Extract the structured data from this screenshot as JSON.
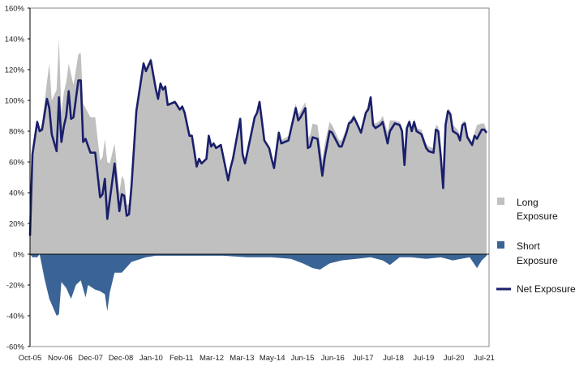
{
  "chart_data": {
    "type": "area",
    "title": "",
    "xlabel": "",
    "ylabel": "",
    "ylim": [
      -60,
      160
    ],
    "y_ticks": [
      "160%",
      "140%",
      "120%",
      "100%",
      "80%",
      "60%",
      "40%",
      "20%",
      "0%",
      "-20%",
      "-40%",
      "-60%"
    ],
    "y_tick_values": [
      160,
      140,
      120,
      100,
      80,
      60,
      40,
      20,
      0,
      -20,
      -40,
      -60
    ],
    "x_tick_labels": [
      "Oct-05",
      "Nov-06",
      "Dec-07",
      "Dec-08",
      "Jan-10",
      "Feb-11",
      "Mar-12",
      "Mar-13",
      "May-14",
      "Jun-15",
      "Jun-16",
      "Jul-17",
      "Jul-18",
      "Jul-19",
      "Jul-20",
      "Jul-21"
    ],
    "x_unit": "months since Oct-05",
    "xlim": [
      0,
      189
    ],
    "legend_position": "right",
    "series": [
      {
        "name": "Long Exposure",
        "kind": "area",
        "color": "#c0c0c0",
        "points": [
          [
            0,
            12
          ],
          [
            1,
            67
          ],
          [
            3,
            88
          ],
          [
            4,
            80
          ],
          [
            5,
            85
          ],
          [
            7,
            112
          ],
          [
            8,
            124
          ],
          [
            9,
            100
          ],
          [
            11,
            107
          ],
          [
            12,
            140
          ],
          [
            13,
            92
          ],
          [
            14,
            105
          ],
          [
            15,
            112
          ],
          [
            16,
            124
          ],
          [
            17,
            117
          ],
          [
            18,
            110
          ],
          [
            20,
            130
          ],
          [
            21,
            131
          ],
          [
            22,
            98
          ],
          [
            23,
            95
          ],
          [
            25,
            89
          ],
          [
            27,
            89
          ],
          [
            29,
            61
          ],
          [
            30,
            63
          ],
          [
            31,
            75
          ],
          [
            32,
            60
          ],
          [
            33,
            59
          ],
          [
            35,
            72
          ],
          [
            37,
            40
          ],
          [
            38,
            51
          ],
          [
            39,
            48
          ],
          [
            40,
            32
          ],
          [
            41,
            33
          ],
          [
            42,
            49
          ],
          [
            44,
            95
          ],
          [
            47,
            126
          ],
          [
            48,
            121
          ],
          [
            50,
            128
          ],
          [
            52,
            109
          ],
          [
            53,
            102
          ],
          [
            54,
            112
          ],
          [
            55,
            108
          ],
          [
            56,
            110
          ],
          [
            57,
            98
          ],
          [
            60,
            100
          ],
          [
            62,
            95
          ],
          [
            63,
            97
          ],
          [
            64,
            93
          ],
          [
            66,
            78
          ],
          [
            67,
            78
          ],
          [
            69,
            58
          ],
          [
            70,
            63
          ],
          [
            71,
            60
          ],
          [
            73,
            63
          ],
          [
            74,
            78
          ],
          [
            75,
            71
          ],
          [
            76,
            73
          ],
          [
            77,
            70
          ],
          [
            79,
            72
          ],
          [
            82,
            49
          ],
          [
            83,
            57
          ],
          [
            84,
            63
          ],
          [
            87,
            89
          ],
          [
            88,
            66
          ],
          [
            89,
            60
          ],
          [
            91,
            75
          ],
          [
            93,
            90
          ],
          [
            94,
            93
          ],
          [
            95,
            100
          ],
          [
            97,
            75
          ],
          [
            99,
            70
          ],
          [
            100,
            63
          ],
          [
            101,
            58
          ],
          [
            103,
            81
          ],
          [
            104,
            74
          ],
          [
            107,
            77
          ],
          [
            110,
            98
          ],
          [
            111,
            91
          ],
          [
            112,
            93
          ],
          [
            114,
            99
          ],
          [
            115,
            75
          ],
          [
            116,
            78
          ],
          [
            117,
            85
          ],
          [
            119,
            84
          ],
          [
            121,
            61
          ],
          [
            122,
            72
          ],
          [
            124,
            86
          ],
          [
            125,
            84
          ],
          [
            128,
            74
          ],
          [
            129,
            74
          ],
          [
            131,
            82
          ],
          [
            132,
            87
          ],
          [
            133,
            88
          ],
          [
            134,
            91
          ],
          [
            135,
            88
          ],
          [
            137,
            81
          ],
          [
            139,
            94
          ],
          [
            140,
            96
          ],
          [
            141,
            104
          ],
          [
            142,
            86
          ],
          [
            143,
            85
          ],
          [
            145,
            87
          ],
          [
            146,
            90
          ],
          [
            148,
            79
          ],
          [
            149,
            87
          ],
          [
            151,
            87
          ],
          [
            153,
            86
          ],
          [
            154,
            82
          ],
          [
            155,
            60
          ],
          [
            156,
            84
          ],
          [
            157,
            88
          ],
          [
            158,
            82
          ],
          [
            159,
            88
          ],
          [
            160,
            82
          ],
          [
            162,
            81
          ],
          [
            164,
            72
          ],
          [
            165,
            70
          ],
          [
            167,
            69
          ],
          [
            168,
            84
          ],
          [
            169,
            83
          ],
          [
            170,
            67
          ],
          [
            171,
            46
          ],
          [
            172,
            87
          ],
          [
            173,
            95
          ],
          [
            174,
            93
          ],
          [
            175,
            84
          ],
          [
            177,
            81
          ],
          [
            178,
            77
          ],
          [
            179,
            86
          ],
          [
            180,
            87
          ],
          [
            181,
            78
          ],
          [
            183,
            73
          ],
          [
            184,
            79
          ],
          [
            185,
            84
          ],
          [
            187,
            85
          ],
          [
            188,
            85
          ],
          [
            189,
            80
          ]
        ]
      },
      {
        "name": "Short Exposure",
        "kind": "area",
        "color": "#3a6496",
        "points": [
          [
            0,
            0
          ],
          [
            1,
            -2
          ],
          [
            3,
            -2
          ],
          [
            4,
            0
          ],
          [
            6,
            -16
          ],
          [
            8,
            -29
          ],
          [
            11,
            -40
          ],
          [
            12,
            -39
          ],
          [
            13,
            -18
          ],
          [
            15,
            -22
          ],
          [
            17,
            -29
          ],
          [
            19,
            -20
          ],
          [
            21,
            -17
          ],
          [
            23,
            -28
          ],
          [
            24,
            -20
          ],
          [
            27,
            -23
          ],
          [
            29,
            -24
          ],
          [
            31,
            -26
          ],
          [
            32,
            -37
          ],
          [
            33,
            -25
          ],
          [
            35,
            -12
          ],
          [
            38,
            -12
          ],
          [
            42,
            -5
          ],
          [
            48,
            -2
          ],
          [
            52,
            -1
          ],
          [
            60,
            -1
          ],
          [
            80,
            -1
          ],
          [
            90,
            -2
          ],
          [
            100,
            -2
          ],
          [
            108,
            -3
          ],
          [
            113,
            -6
          ],
          [
            117,
            -9
          ],
          [
            120,
            -10
          ],
          [
            124,
            -6
          ],
          [
            129,
            -4
          ],
          [
            135,
            -3
          ],
          [
            141,
            -2
          ],
          [
            146,
            -4
          ],
          [
            149,
            -7
          ],
          [
            153,
            -2
          ],
          [
            158,
            -2
          ],
          [
            164,
            -3
          ],
          [
            170,
            -2
          ],
          [
            175,
            -4
          ],
          [
            182,
            -2
          ],
          [
            185,
            -9
          ],
          [
            187,
            -4
          ],
          [
            189,
            -1
          ]
        ]
      },
      {
        "name": "Net Exposure",
        "kind": "line",
        "color": "#1a1f6b",
        "points": [
          [
            0,
            12
          ],
          [
            1,
            65
          ],
          [
            3,
            86
          ],
          [
            4,
            80
          ],
          [
            5,
            81
          ],
          [
            7,
            101
          ],
          [
            8,
            95
          ],
          [
            9,
            78
          ],
          [
            11,
            67
          ],
          [
            12,
            102
          ],
          [
            13,
            73
          ],
          [
            14,
            83
          ],
          [
            15,
            90
          ],
          [
            16,
            106
          ],
          [
            17,
            88
          ],
          [
            18,
            89
          ],
          [
            20,
            113
          ],
          [
            21,
            113
          ],
          [
            22,
            73
          ],
          [
            23,
            75
          ],
          [
            25,
            66
          ],
          [
            27,
            66
          ],
          [
            29,
            37
          ],
          [
            30,
            39
          ],
          [
            31,
            49
          ],
          [
            32,
            23
          ],
          [
            35,
            59
          ],
          [
            37,
            28
          ],
          [
            38,
            39
          ],
          [
            39,
            38
          ],
          [
            40,
            25
          ],
          [
            41,
            26
          ],
          [
            42,
            44
          ],
          [
            44,
            93
          ],
          [
            47,
            124
          ],
          [
            48,
            119
          ],
          [
            50,
            126
          ],
          [
            52,
            108
          ],
          [
            53,
            101
          ],
          [
            54,
            111
          ],
          [
            55,
            107
          ],
          [
            56,
            109
          ],
          [
            57,
            97
          ],
          [
            60,
            99
          ],
          [
            62,
            94
          ],
          [
            63,
            96
          ],
          [
            64,
            92
          ],
          [
            66,
            77
          ],
          [
            67,
            77
          ],
          [
            69,
            57
          ],
          [
            70,
            62
          ],
          [
            71,
            59
          ],
          [
            73,
            62
          ],
          [
            74,
            77
          ],
          [
            75,
            70
          ],
          [
            76,
            72
          ],
          [
            77,
            69
          ],
          [
            79,
            71
          ],
          [
            82,
            48
          ],
          [
            83,
            56
          ],
          [
            84,
            62
          ],
          [
            87,
            88
          ],
          [
            88,
            65
          ],
          [
            89,
            59
          ],
          [
            91,
            74
          ],
          [
            93,
            89
          ],
          [
            94,
            92
          ],
          [
            95,
            99
          ],
          [
            97,
            74
          ],
          [
            99,
            69
          ],
          [
            100,
            62
          ],
          [
            101,
            56
          ],
          [
            103,
            79
          ],
          [
            104,
            72
          ],
          [
            107,
            74
          ],
          [
            110,
            95
          ],
          [
            111,
            87
          ],
          [
            112,
            89
          ],
          [
            114,
            95
          ],
          [
            115,
            69
          ],
          [
            116,
            70
          ],
          [
            117,
            76
          ],
          [
            119,
            75
          ],
          [
            121,
            51
          ],
          [
            122,
            63
          ],
          [
            124,
            80
          ],
          [
            125,
            79
          ],
          [
            128,
            70
          ],
          [
            129,
            70
          ],
          [
            131,
            79
          ],
          [
            132,
            85
          ],
          [
            133,
            86
          ],
          [
            134,
            89
          ],
          [
            135,
            86
          ],
          [
            137,
            79
          ],
          [
            139,
            92
          ],
          [
            140,
            94
          ],
          [
            141,
            102
          ],
          [
            142,
            84
          ],
          [
            143,
            82
          ],
          [
            145,
            84
          ],
          [
            146,
            86
          ],
          [
            148,
            72
          ],
          [
            149,
            80
          ],
          [
            151,
            85
          ],
          [
            153,
            84
          ],
          [
            154,
            80
          ],
          [
            155,
            58
          ],
          [
            156,
            82
          ],
          [
            157,
            86
          ],
          [
            158,
            80
          ],
          [
            159,
            86
          ],
          [
            160,
            80
          ],
          [
            162,
            78
          ],
          [
            164,
            69
          ],
          [
            165,
            67
          ],
          [
            167,
            66
          ],
          [
            168,
            81
          ],
          [
            169,
            80
          ],
          [
            170,
            64
          ],
          [
            171,
            43
          ],
          [
            172,
            84
          ],
          [
            173,
            93
          ],
          [
            174,
            91
          ],
          [
            175,
            80
          ],
          [
            177,
            78
          ],
          [
            178,
            74
          ],
          [
            179,
            84
          ],
          [
            180,
            85
          ],
          [
            181,
            76
          ],
          [
            183,
            71
          ],
          [
            184,
            77
          ],
          [
            185,
            75
          ],
          [
            187,
            81
          ],
          [
            188,
            81
          ],
          [
            189,
            79
          ]
        ]
      }
    ],
    "legend": [
      {
        "line1": "Long",
        "line2": "Exposure"
      },
      {
        "line1": "Short",
        "line2": "Exposure"
      },
      {
        "line1": "Net Exposure",
        "line2": ""
      }
    ]
  }
}
